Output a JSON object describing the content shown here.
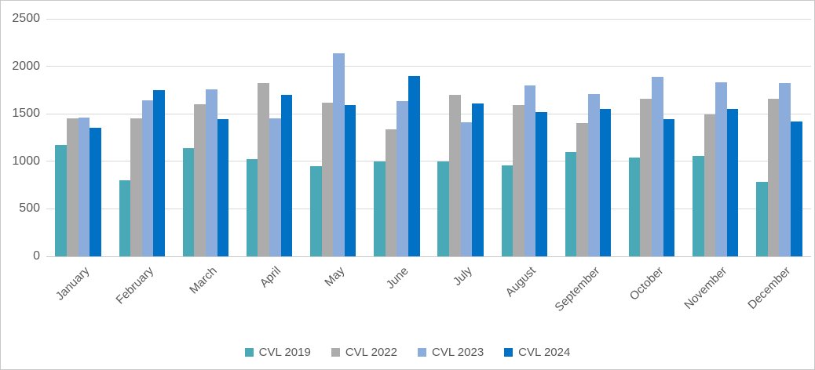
{
  "chart_data": {
    "type": "bar",
    "title": "",
    "categories": [
      "January",
      "February",
      "March",
      "April",
      "May",
      "June",
      "July",
      "August",
      "September",
      "October",
      "November",
      "December"
    ],
    "series": [
      {
        "name": "CVL 2019",
        "color": "#49A9B7",
        "values": [
          1170,
          800,
          1140,
          1020,
          950,
          1000,
          1000,
          960,
          1100,
          1040,
          1060,
          780
        ]
      },
      {
        "name": "CVL 2022",
        "color": "#ACACAC",
        "values": [
          1450,
          1450,
          1600,
          1820,
          1620,
          1340,
          1700,
          1590,
          1400,
          1660,
          1490,
          1660
        ]
      },
      {
        "name": "CVL 2023",
        "color": "#8CACDC",
        "values": [
          1460,
          1640,
          1760,
          1450,
          2140,
          1630,
          1410,
          1800,
          1710,
          1890,
          1830,
          1820
        ]
      },
      {
        "name": "CVL 2024",
        "color": "#0071C5",
        "values": [
          1350,
          1750,
          1440,
          1700,
          1590,
          1900,
          1610,
          1520,
          1550,
          1440,
          1550,
          1420
        ]
      }
    ],
    "xlabel": "",
    "ylabel": "",
    "ylim": [
      0,
      2500
    ],
    "yticks": [
      0,
      500,
      1000,
      1500,
      2000,
      2500
    ],
    "grid": true,
    "legend_position": "bottom",
    "axis_text_color": "#595959",
    "gridline_color": "#D9D9D9"
  }
}
